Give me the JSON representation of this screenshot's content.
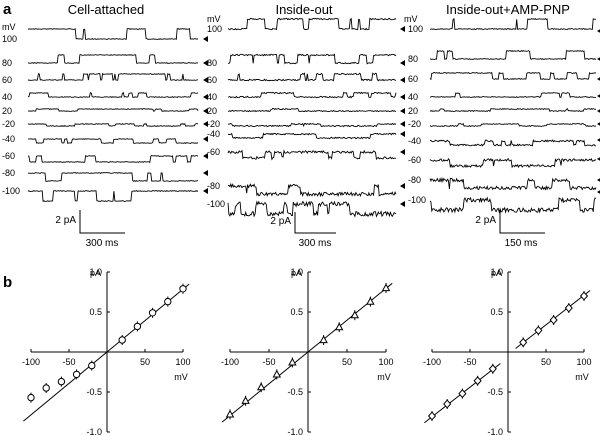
{
  "panel_a": {
    "label": "a",
    "columns": [
      {
        "title": "Cell-attached",
        "unit": "",
        "traces": [
          {
            "label": "100",
            "open": 1.0,
            "noise": 0.25
          },
          {
            "label": "80",
            "open": 0.8,
            "noise": 0.25
          },
          {
            "label": "60",
            "open": 0.6,
            "noise": 0.25
          },
          {
            "label": "40",
            "open": 0.4,
            "noise": 0.25
          },
          {
            "label": "20",
            "open": 0.2,
            "noise": 0.25
          },
          {
            "label": "-20",
            "open": -0.2,
            "noise": 0.25
          },
          {
            "label": "-40",
            "open": -0.4,
            "noise": 0.25
          },
          {
            "label": "-60",
            "open": -0.6,
            "noise": 0.25
          },
          {
            "label": "-80",
            "open": -0.8,
            "noise": 0.25
          },
          {
            "label": "-100",
            "open": -1.0,
            "noise": 0.3
          }
        ],
        "scale": {
          "current": "2 pA",
          "time": "300 ms"
        }
      },
      {
        "title": "Inside-out",
        "unit": "mV",
        "traces": [
          {
            "label": "100",
            "open": 1.0,
            "noise": 0.5
          },
          {
            "label": "80",
            "open": 0.8,
            "noise": 0.5
          },
          {
            "label": "60",
            "open": 0.6,
            "noise": 0.5
          },
          {
            "label": "40",
            "open": 0.4,
            "noise": 0.5
          },
          {
            "label": "20",
            "open": 0.2,
            "noise": 0.4
          },
          {
            "label": "-20",
            "open": -0.2,
            "noise": 0.4
          },
          {
            "label": "-40",
            "open": -0.4,
            "noise": 0.5
          },
          {
            "label": "-60",
            "open": -0.6,
            "noise": 0.9
          },
          {
            "label": "-80",
            "open": -0.8,
            "noise": 1.2
          },
          {
            "label": "-100",
            "open": -1.0,
            "noise": 1.6
          }
        ],
        "scale": {
          "current": "2 pA",
          "time": "300 ms"
        }
      },
      {
        "title": "Inside-out+AMP-PNP",
        "unit": "mV",
        "traces": [
          {
            "label": "100",
            "open": 1.0,
            "noise": 0.3
          },
          {
            "label": "80",
            "open": 0.8,
            "noise": 0.3
          },
          {
            "label": "60",
            "open": 0.6,
            "noise": 0.3
          },
          {
            "label": "40",
            "open": 0.4,
            "noise": 0.3
          },
          {
            "label": "20",
            "open": 0.2,
            "noise": 0.3
          },
          {
            "label": "-20",
            "open": -0.2,
            "noise": 0.3
          },
          {
            "label": "-40",
            "open": -0.4,
            "noise": 0.6
          },
          {
            "label": "-60",
            "open": -0.6,
            "noise": 0.8
          },
          {
            "label": "-80",
            "open": -0.8,
            "noise": 1.1
          },
          {
            "label": "-100",
            "open": -1.0,
            "noise": 1.5
          }
        ],
        "scale": {
          "current": "2 pA",
          "time": "150 ms"
        }
      }
    ],
    "first_column_unit": "mV"
  },
  "panel_b": {
    "label": "b"
  },
  "chart_data": [
    {
      "type": "scatter",
      "xlabel": "mV",
      "ylabel": "pA",
      "xlim": [
        -100,
        100
      ],
      "ylim": [
        -1.0,
        1.0
      ],
      "x_ticks": [
        "-100",
        "-50",
        "50",
        "100"
      ],
      "y_ticks": [
        "1.0",
        "0.5",
        "-0.5",
        "-1.0"
      ],
      "marker": "circle",
      "series": [
        {
          "x": [
            -100,
            -80,
            -60,
            -40,
            -20,
            20,
            40,
            60,
            80,
            100
          ],
          "y": [
            -0.57,
            -0.45,
            -0.37,
            -0.28,
            -0.17,
            0.15,
            0.32,
            0.49,
            0.63,
            0.79
          ]
        }
      ],
      "fit": {
        "slope": 0.00785,
        "intercept": 0.0
      }
    },
    {
      "type": "scatter",
      "xlabel": "mV",
      "ylabel": "pA",
      "xlim": [
        -100,
        100
      ],
      "ylim": [
        -1.0,
        1.0
      ],
      "x_ticks": [
        "-100",
        "-50",
        "50",
        "100"
      ],
      "y_ticks": [
        "1.0",
        "0.5",
        "-0.5",
        "-1.0"
      ],
      "marker": "triangle",
      "series": [
        {
          "x": [
            -100,
            -80,
            -60,
            -40,
            -20,
            20,
            40,
            60,
            80,
            100
          ],
          "y": [
            -0.78,
            -0.61,
            -0.44,
            -0.28,
            -0.13,
            0.15,
            0.31,
            0.46,
            0.63,
            0.8
          ]
        }
      ],
      "fit": {
        "slope": 0.00795,
        "intercept": 0.0
      }
    },
    {
      "type": "scatter",
      "xlabel": "mV",
      "ylabel": "pA",
      "xlim": [
        -100,
        100
      ],
      "ylim": [
        -1.0,
        1.0
      ],
      "x_ticks": [
        "-100",
        "-50",
        "50",
        "100"
      ],
      "y_ticks": [
        "1.0",
        "0.5",
        "-0.5",
        "-1.0"
      ],
      "marker": "diamond",
      "series": [
        {
          "x": [
            -100,
            -80,
            -60,
            -40,
            -20,
            20,
            40,
            60,
            80,
            100
          ],
          "y": [
            -0.8,
            -0.65,
            -0.52,
            -0.36,
            -0.21,
            0.12,
            0.27,
            0.4,
            0.55,
            0.7
          ]
        }
      ],
      "fits": [
        {
          "slope": 0.0074,
          "intercept": -0.07
        },
        {
          "slope": 0.0074,
          "intercept": -0.03
        }
      ]
    }
  ]
}
